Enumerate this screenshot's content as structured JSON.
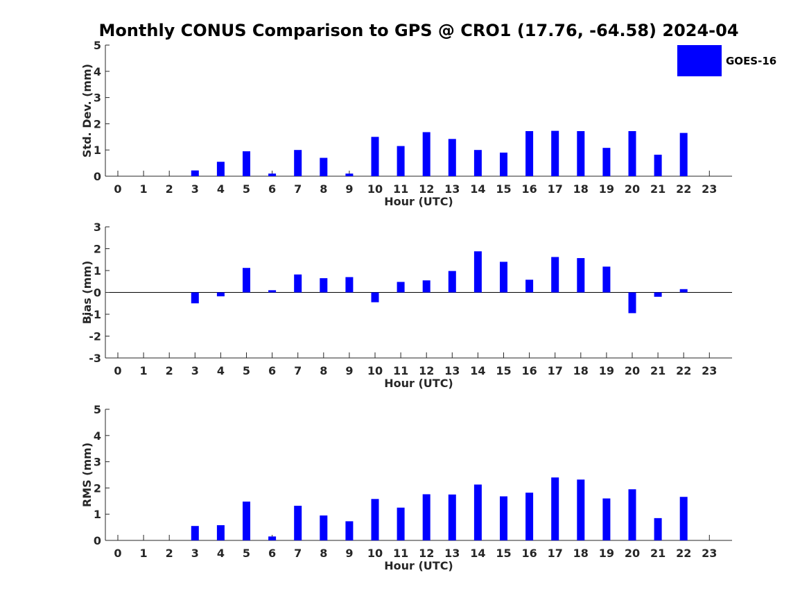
{
  "title": "Monthly CONUS Comparison to GPS @ CRO1 (17.76, -64.58) 2024-04",
  "legend": {
    "label": "GOES-16",
    "color": "#0000ff"
  },
  "chart_data": [
    {
      "type": "bar",
      "name": "stddev",
      "xlabel": "Hour (UTC)",
      "ylabel": "Std. Dev. (mm)",
      "ylim": [
        0,
        5
      ],
      "yticks": [
        "0",
        "1",
        "2",
        "3",
        "4",
        "5"
      ],
      "categories": [
        "0",
        "1",
        "2",
        "3",
        "4",
        "5",
        "6",
        "7",
        "8",
        "9",
        "10",
        "11",
        "12",
        "13",
        "14",
        "15",
        "16",
        "17",
        "18",
        "19",
        "20",
        "21",
        "22",
        "23"
      ],
      "values": [
        null,
        null,
        null,
        0.22,
        0.55,
        0.95,
        0.1,
        1.0,
        0.7,
        0.1,
        1.5,
        1.15,
        1.68,
        1.42,
        1.0,
        0.9,
        1.72,
        1.73,
        1.72,
        1.08,
        1.72,
        0.82,
        1.65,
        null
      ],
      "color": "#0000ff"
    },
    {
      "type": "bar",
      "name": "bias",
      "xlabel": "Hour (UTC)",
      "ylabel": "Bias (mm)",
      "ylim": [
        -3,
        3
      ],
      "yticks": [
        "-3",
        "-2",
        "-1",
        "0",
        "1",
        "2",
        "3"
      ],
      "categories": [
        "0",
        "1",
        "2",
        "3",
        "4",
        "5",
        "6",
        "7",
        "8",
        "9",
        "10",
        "11",
        "12",
        "13",
        "14",
        "15",
        "16",
        "17",
        "18",
        "19",
        "20",
        "21",
        "22",
        "23"
      ],
      "values": [
        null,
        null,
        null,
        -0.5,
        -0.18,
        1.12,
        0.1,
        0.82,
        0.65,
        0.7,
        -0.45,
        0.48,
        0.55,
        0.98,
        1.88,
        1.4,
        0.58,
        1.62,
        1.57,
        1.18,
        -0.95,
        -0.2,
        0.15,
        null
      ],
      "color": "#0000ff"
    },
    {
      "type": "bar",
      "name": "rms",
      "xlabel": "Hour (UTC)",
      "ylabel": "RMS (mm)",
      "ylim": [
        0,
        5
      ],
      "yticks": [
        "0",
        "1",
        "2",
        "3",
        "4",
        "5"
      ],
      "categories": [
        "0",
        "1",
        "2",
        "3",
        "4",
        "5",
        "6",
        "7",
        "8",
        "9",
        "10",
        "11",
        "12",
        "13",
        "14",
        "15",
        "16",
        "17",
        "18",
        "19",
        "20",
        "21",
        "22",
        "23"
      ],
      "values": [
        null,
        null,
        null,
        0.55,
        0.58,
        1.48,
        0.15,
        1.32,
        0.95,
        0.73,
        1.58,
        1.25,
        1.76,
        1.75,
        2.13,
        1.68,
        1.82,
        2.4,
        2.32,
        1.6,
        1.95,
        0.85,
        1.66,
        null
      ],
      "color": "#0000ff"
    }
  ]
}
